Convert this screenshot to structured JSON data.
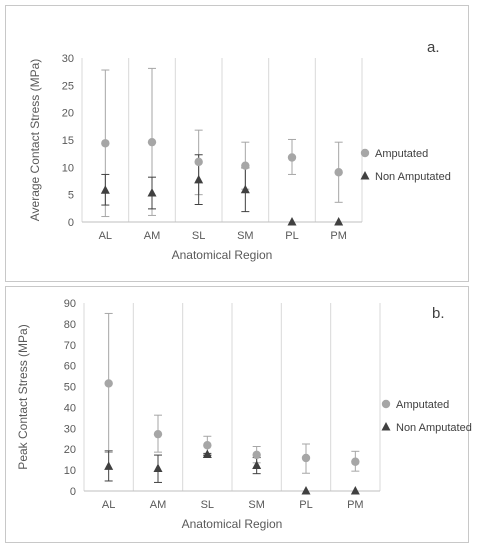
{
  "chart_data": [
    {
      "type": "scatter",
      "panel_label": "a.",
      "categories": [
        "AL",
        "AM",
        "SL",
        "SM",
        "PL",
        "PM"
      ],
      "xlabel": "Anatomical Region",
      "ylabel": "Average Contact Stress (MPa)",
      "ylim": [
        0,
        30
      ],
      "yticks": [
        0,
        5,
        10,
        15,
        20,
        25,
        30
      ],
      "grid": "vertical category separators",
      "legend_position": "right",
      "series": [
        {
          "name": "Amputated",
          "marker": "circle",
          "color": "#a6a6a6",
          "values": [
            14.4,
            14.6,
            11.0,
            10.3,
            11.8,
            9.1
          ],
          "error_low": [
            1.0,
            1.2,
            5.0,
            6.0,
            8.7,
            3.6
          ],
          "error_high": [
            27.8,
            28.1,
            16.8,
            14.6,
            15.1,
            14.6
          ]
        },
        {
          "name": "Non Amputated",
          "marker": "triangle",
          "color": "#404040",
          "values": [
            5.8,
            5.3,
            7.7,
            5.9,
            0,
            0
          ],
          "error_low": [
            3.1,
            2.4,
            3.2,
            1.9,
            null,
            null
          ],
          "error_high": [
            8.7,
            8.2,
            12.3,
            9.9,
            null,
            null
          ]
        }
      ]
    },
    {
      "type": "scatter",
      "panel_label": "b.",
      "categories": [
        "AL",
        "AM",
        "SL",
        "SM",
        "PL",
        "PM"
      ],
      "xlabel": "Anatomical Region",
      "ylabel": "Peak Contact Stress (MPa)",
      "ylim": [
        0,
        90
      ],
      "yticks": [
        0,
        10,
        20,
        30,
        40,
        50,
        60,
        70,
        80,
        90
      ],
      "grid": "vertical category separators",
      "legend_position": "right",
      "series": [
        {
          "name": "Amputated",
          "marker": "circle",
          "color": "#a6a6a6",
          "values": [
            51.5,
            27.2,
            21.9,
            17.3,
            15.8,
            14.0
          ],
          "error_low": [
            18.5,
            18.6,
            17.5,
            13.5,
            8.5,
            9.5
          ],
          "error_high": [
            85.0,
            36.3,
            26.2,
            21.3,
            22.5,
            19.0
          ]
        },
        {
          "name": "Non Amputated",
          "marker": "triangle",
          "color": "#404040",
          "values": [
            11.8,
            10.8,
            17.5,
            12.2,
            0,
            0
          ],
          "error_low": [
            4.8,
            4.1,
            17.0,
            8.3,
            null,
            null
          ],
          "error_high": [
            19.2,
            17.2,
            18.0,
            16.0,
            null,
            null
          ]
        }
      ]
    }
  ]
}
